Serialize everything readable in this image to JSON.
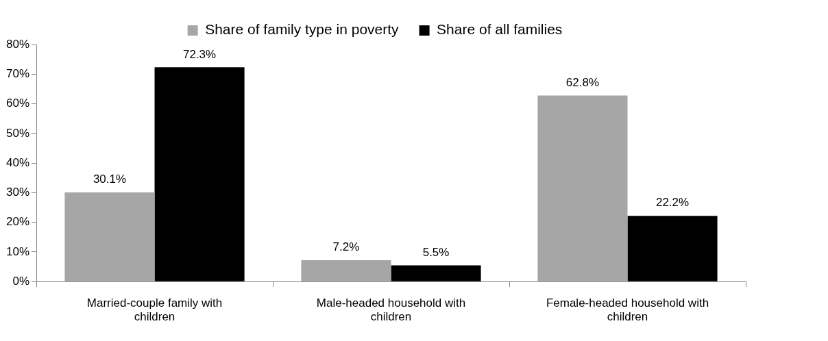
{
  "chart_data": {
    "type": "bar",
    "categories": [
      "Married-couple family with children",
      "Male-headed household with children",
      "Female-headed household with children"
    ],
    "series": [
      {
        "name": "Share of family type in poverty",
        "color": "#a6a6a6",
        "values": [
          30.1,
          7.2,
          62.8
        ],
        "value_labels": [
          "30.1%",
          "7.2%",
          "62.8%"
        ]
      },
      {
        "name": "Share of all families",
        "color": "#000000",
        "values": [
          72.3,
          5.5,
          22.2
        ],
        "value_labels": [
          "72.3%",
          "5.5%",
          "22.2%"
        ]
      }
    ],
    "ylim": [
      0,
      80
    ],
    "yticks": [
      {
        "value": 0,
        "label": "0%"
      },
      {
        "value": 10,
        "label": "10%"
      },
      {
        "value": 20,
        "label": "20%"
      },
      {
        "value": 30,
        "label": "30%"
      },
      {
        "value": 40,
        "label": "40%"
      },
      {
        "value": 50,
        "label": "50%"
      },
      {
        "value": 60,
        "label": "60%"
      },
      {
        "value": 70,
        "label": "70%"
      },
      {
        "value": 80,
        "label": "80%"
      }
    ],
    "grid": false,
    "legend": "top"
  }
}
